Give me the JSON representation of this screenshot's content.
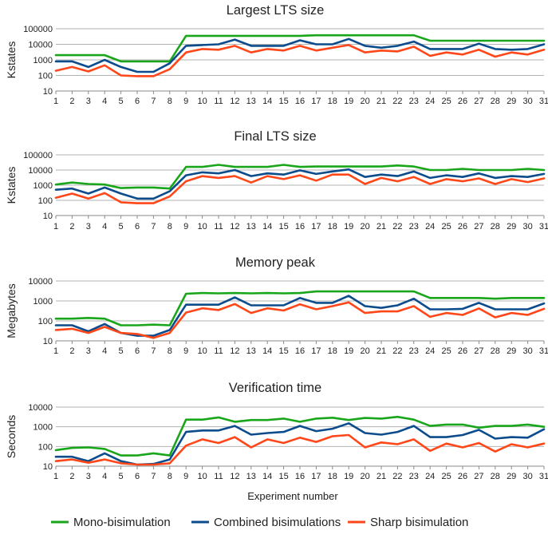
{
  "chart_data": [
    {
      "type": "line",
      "title": "Largest LTS size",
      "ylabel": "Kstates",
      "xlabel": "",
      "x": [
        1,
        2,
        3,
        4,
        5,
        6,
        7,
        8,
        9,
        10,
        11,
        12,
        13,
        14,
        15,
        16,
        17,
        18,
        19,
        20,
        21,
        22,
        23,
        24,
        25,
        26,
        27,
        28,
        29,
        30,
        31
      ],
      "yscale": "log",
      "ylim": [
        10,
        100000
      ],
      "yticks": [
        10,
        100,
        1000,
        10000,
        100000
      ],
      "ytick_labels": [
        "10",
        "100",
        "1000",
        "10000",
        "100000"
      ],
      "series": [
        {
          "name": "Mono-bisimulation",
          "values": [
            2000,
            2000,
            2000,
            2000,
            800,
            800,
            800,
            800,
            35000,
            35000,
            35000,
            35000,
            35000,
            35000,
            35000,
            35000,
            38000,
            38000,
            38000,
            38000,
            38000,
            38000,
            38000,
            17000,
            17000,
            17000,
            17000,
            17000,
            17000,
            17000,
            17000
          ]
        },
        {
          "name": "Combined bisimulations",
          "values": [
            800,
            800,
            350,
            1000,
            350,
            170,
            170,
            600,
            8000,
            9000,
            10000,
            20000,
            8000,
            8000,
            8000,
            18000,
            10000,
            10000,
            22000,
            8000,
            6000,
            8000,
            15000,
            5000,
            5000,
            5000,
            11000,
            5000,
            4500,
            5000,
            10000
          ]
        },
        {
          "name": "Sharp bisimulation",
          "values": [
            200,
            350,
            180,
            450,
            100,
            90,
            90,
            250,
            3000,
            5000,
            4500,
            8000,
            3000,
            5000,
            4000,
            8000,
            4000,
            6000,
            9000,
            3000,
            4000,
            3500,
            7000,
            1800,
            3000,
            2200,
            4500,
            1600,
            3000,
            2200,
            4500
          ]
        }
      ]
    },
    {
      "type": "line",
      "title": "Final LTS size",
      "ylabel": "Kstates",
      "xlabel": "",
      "x": [
        1,
        2,
        3,
        4,
        5,
        6,
        7,
        8,
        9,
        10,
        11,
        12,
        13,
        14,
        15,
        16,
        17,
        18,
        19,
        20,
        21,
        22,
        23,
        24,
        25,
        26,
        27,
        28,
        29,
        30,
        31
      ],
      "yscale": "log",
      "ylim": [
        10,
        100000
      ],
      "yticks": [
        10,
        100,
        1000,
        10000,
        100000
      ],
      "ytick_labels": [
        "10",
        "100",
        "1000",
        "10000",
        "100000"
      ],
      "series": [
        {
          "name": "Mono-bisimulation",
          "values": [
            1100,
            1500,
            1200,
            1100,
            650,
            700,
            700,
            600,
            16000,
            16000,
            22000,
            16000,
            16000,
            16000,
            22000,
            16000,
            17000,
            17000,
            17000,
            17000,
            17000,
            20000,
            17000,
            10000,
            10000,
            12000,
            10000,
            10000,
            10000,
            12000,
            10000
          ]
        },
        {
          "name": "Combined bisimulations",
          "values": [
            500,
            600,
            280,
            700,
            280,
            130,
            130,
            400,
            4500,
            7000,
            6000,
            10000,
            4000,
            6000,
            5000,
            9500,
            5500,
            8000,
            11000,
            3500,
            5000,
            4000,
            8000,
            3000,
            4500,
            3500,
            6000,
            3000,
            4000,
            3500,
            5500
          ]
        },
        {
          "name": "Sharp bisimulation",
          "values": [
            150,
            280,
            130,
            300,
            75,
            65,
            65,
            180,
            1800,
            4000,
            3000,
            4000,
            1500,
            4000,
            2500,
            4500,
            2000,
            5000,
            5000,
            1200,
            3000,
            1800,
            3500,
            1200,
            2500,
            1800,
            2800,
            1200,
            2500,
            1600,
            2800
          ]
        }
      ]
    },
    {
      "type": "line",
      "title": "Memory peak",
      "ylabel": "Megabytes",
      "xlabel": "",
      "x": [
        1,
        2,
        3,
        4,
        5,
        6,
        7,
        8,
        9,
        10,
        11,
        12,
        13,
        14,
        15,
        16,
        17,
        18,
        19,
        20,
        21,
        22,
        23,
        24,
        25,
        26,
        27,
        28,
        29,
        30,
        31
      ],
      "yscale": "log",
      "ylim": [
        10,
        10000
      ],
      "yticks": [
        10,
        100,
        1000,
        10000
      ],
      "ytick_labels": [
        "10",
        "100",
        "1000",
        "10000"
      ],
      "series": [
        {
          "name": "Mono-bisimulation",
          "values": [
            130,
            130,
            140,
            130,
            60,
            60,
            65,
            60,
            2300,
            2500,
            2400,
            2500,
            2400,
            2500,
            2400,
            2500,
            3000,
            3000,
            3000,
            3000,
            3000,
            3000,
            3000,
            1400,
            1400,
            1400,
            1400,
            1300,
            1400,
            1400,
            1400
          ]
        },
        {
          "name": "Combined bisimulations",
          "values": [
            60,
            60,
            30,
            70,
            25,
            18,
            18,
            35,
            650,
            650,
            650,
            1500,
            600,
            600,
            600,
            1400,
            800,
            800,
            1800,
            550,
            450,
            600,
            1300,
            380,
            380,
            400,
            800,
            380,
            380,
            380,
            750
          ]
        },
        {
          "name": "Sharp bisimulation",
          "values": [
            35,
            40,
            25,
            50,
            25,
            22,
            14,
            25,
            260,
            430,
            350,
            700,
            250,
            430,
            330,
            680,
            380,
            550,
            850,
            250,
            300,
            300,
            550,
            160,
            250,
            200,
            420,
            150,
            250,
            200,
            400
          ]
        }
      ]
    },
    {
      "type": "line",
      "title": "Verification time",
      "ylabel": "Seconds",
      "xlabel": "Experiment number",
      "x": [
        1,
        2,
        3,
        4,
        5,
        6,
        7,
        8,
        9,
        10,
        11,
        12,
        13,
        14,
        15,
        16,
        17,
        18,
        19,
        20,
        21,
        22,
        23,
        24,
        25,
        26,
        27,
        28,
        29,
        30,
        31
      ],
      "yscale": "log",
      "ylim": [
        10,
        10000
      ],
      "yticks": [
        10,
        100,
        1000,
        10000
      ],
      "ytick_labels": [
        "10",
        "100",
        "1000",
        "10000"
      ],
      "series": [
        {
          "name": "Mono-bisimulation",
          "values": [
            65,
            85,
            90,
            75,
            35,
            35,
            45,
            35,
            2300,
            2300,
            3000,
            1800,
            2200,
            2200,
            2600,
            1800,
            2600,
            2900,
            2200,
            2800,
            2600,
            3200,
            2300,
            1100,
            1300,
            1300,
            900,
            1100,
            1100,
            1300,
            1000
          ]
        },
        {
          "name": "Combined bisimulations",
          "values": [
            30,
            30,
            18,
            45,
            18,
            12,
            13,
            22,
            550,
            650,
            650,
            1100,
            400,
            480,
            550,
            1100,
            600,
            800,
            1500,
            480,
            400,
            550,
            1100,
            300,
            300,
            380,
            700,
            250,
            300,
            280,
            750
          ]
        },
        {
          "name": "Sharp bisimulation",
          "values": [
            18,
            22,
            15,
            22,
            14,
            12,
            12,
            14,
            110,
            230,
            150,
            300,
            90,
            230,
            150,
            280,
            170,
            330,
            380,
            90,
            160,
            130,
            230,
            60,
            140,
            90,
            150,
            55,
            130,
            90,
            140
          ]
        }
      ]
    }
  ],
  "legend": {
    "placement": "bottom",
    "items": [
      {
        "label": "Mono-bisimulation",
        "color": "#1aa61a"
      },
      {
        "label": "Combined bisimulations",
        "color": "#0c4c8c"
      },
      {
        "label": "Sharp bisimulation",
        "color": "#ff4719"
      }
    ]
  },
  "colors": {
    "mono": "#1aa61a",
    "combined": "#0c4c8c",
    "sharp": "#ff4719",
    "grid": "#b3b3b3",
    "axis": "#8a8a8a"
  }
}
